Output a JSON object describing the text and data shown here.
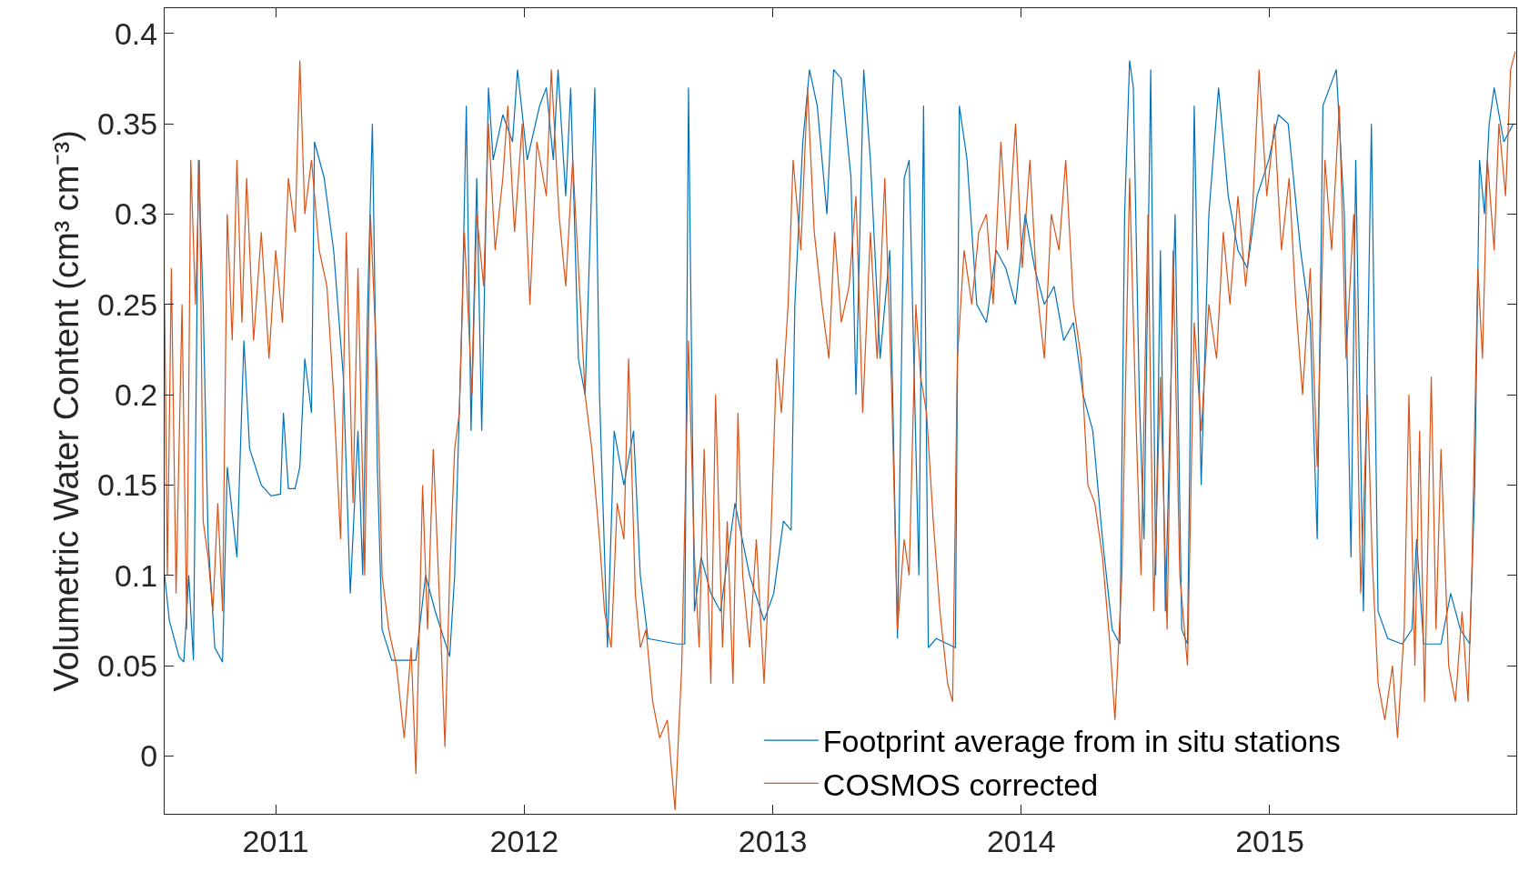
{
  "chart_data": {
    "type": "line",
    "ylabel": "Volumetric Water Content (cm³ cm⁻³)",
    "xlim": [
      2010.553,
      2015.992
    ],
    "xticks": [
      2011,
      2012,
      2013,
      2014,
      2015
    ],
    "ylim": [
      -0.032,
      0.414
    ],
    "yticks": [
      0,
      0.05,
      0.1,
      0.15,
      0.2,
      0.25,
      0.3,
      0.35,
      0.4
    ],
    "legend": "bottom right",
    "line_style": "solid",
    "marker": "none",
    "series": [
      {
        "name": "Footprint average from in situ stations",
        "color": "#0072bd",
        "x": [
          2010.553,
          2010.572,
          2010.611,
          2010.63,
          2010.65,
          2010.669,
          2010.689,
          2010.708,
          2010.728,
          2010.755,
          2010.786,
          2010.805,
          2010.844,
          2010.872,
          2010.895,
          2010.942,
          2010.981,
          2011.019,
          2011.031,
          2011.051,
          2011.078,
          2011.097,
          2011.117,
          2011.144,
          2011.156,
          2011.195,
          2011.233,
          2011.272,
          2011.3,
          2011.331,
          2011.35,
          2011.37,
          2011.389,
          2011.409,
          2011.428,
          2011.467,
          2011.564,
          2011.603,
          2011.642,
          2011.7,
          2011.72,
          2011.751,
          2011.767,
          2011.786,
          2011.809,
          2011.829,
          2011.856,
          2011.875,
          2011.914,
          2011.953,
          2011.973,
          2012.012,
          2012.062,
          2012.089,
          2012.117,
          2012.136,
          2012.167,
          2012.187,
          2012.218,
          2012.245,
          2012.284,
          2012.303,
          2012.335,
          2012.362,
          2012.401,
          2012.44,
          2012.467,
          2012.498,
          2012.615,
          2012.646,
          2012.661,
          2012.685,
          2012.712,
          2012.751,
          2012.79,
          2012.848,
          2012.907,
          2012.965,
          2013.004,
          2013.043,
          2013.074,
          2013.089,
          2013.121,
          2013.148,
          2013.179,
          2013.218,
          2013.245,
          2013.276,
          2013.315,
          2013.335,
          2013.366,
          2013.393,
          2013.432,
          2013.471,
          2013.502,
          2013.529,
          2013.549,
          2013.588,
          2013.607,
          2013.626,
          2013.658,
          2013.704,
          2013.735,
          2013.751,
          2013.782,
          2013.821,
          2013.86,
          2013.899,
          2013.938,
          2013.977,
          2014.016,
          2014.054,
          2014.093,
          2014.132,
          2014.171,
          2014.21,
          2014.249,
          2014.288,
          2014.327,
          2014.366,
          2014.397,
          2014.416,
          2014.436,
          2014.451,
          2014.475,
          2014.494,
          2014.521,
          2014.541,
          2014.56,
          2014.58,
          2014.619,
          2014.646,
          2014.669,
          2014.696,
          2014.724,
          2014.755,
          2014.794,
          2014.833,
          2014.872,
          2014.91,
          2014.949,
          2014.996,
          2015.035,
          2015.074,
          2015.124,
          2015.163,
          2015.191,
          2015.214,
          2015.241,
          2015.268,
          2015.3,
          2015.327,
          2015.346,
          2015.377,
          2015.409,
          2015.436,
          2015.475,
          2015.533,
          2015.572,
          2015.591,
          2015.619,
          2015.689,
          2015.728,
          2015.767,
          2015.805,
          2015.825,
          2015.844,
          2015.864,
          2015.883,
          2015.903,
          2015.942,
          2015.98
        ],
        "values": [
          0.1,
          0.075,
          0.055,
          0.052,
          0.1,
          0.053,
          0.33,
          0.25,
          0.12,
          0.06,
          0.052,
          0.16,
          0.11,
          0.23,
          0.17,
          0.15,
          0.144,
          0.145,
          0.19,
          0.148,
          0.148,
          0.16,
          0.22,
          0.19,
          0.34,
          0.32,
          0.28,
          0.21,
          0.09,
          0.18,
          0.1,
          0.25,
          0.35,
          0.16,
          0.07,
          0.053,
          0.053,
          0.1,
          0.08,
          0.055,
          0.1,
          0.25,
          0.36,
          0.18,
          0.32,
          0.18,
          0.37,
          0.33,
          0.355,
          0.34,
          0.38,
          0.33,
          0.36,
          0.37,
          0.33,
          0.38,
          0.31,
          0.37,
          0.22,
          0.2,
          0.37,
          0.2,
          0.06,
          0.18,
          0.15,
          0.18,
          0.1,
          0.065,
          0.062,
          0.062,
          0.37,
          0.08,
          0.11,
          0.09,
          0.08,
          0.14,
          0.1,
          0.075,
          0.09,
          0.13,
          0.125,
          0.25,
          0.34,
          0.38,
          0.36,
          0.3,
          0.38,
          0.375,
          0.32,
          0.2,
          0.38,
          0.33,
          0.22,
          0.28,
          0.065,
          0.32,
          0.33,
          0.1,
          0.36,
          0.06,
          0.065,
          0.062,
          0.06,
          0.36,
          0.33,
          0.25,
          0.24,
          0.28,
          0.27,
          0.25,
          0.3,
          0.27,
          0.25,
          0.26,
          0.23,
          0.24,
          0.2,
          0.18,
          0.12,
          0.07,
          0.062,
          0.3,
          0.385,
          0.37,
          0.2,
          0.12,
          0.38,
          0.1,
          0.28,
          0.08,
          0.3,
          0.07,
          0.062,
          0.36,
          0.15,
          0.3,
          0.37,
          0.31,
          0.28,
          0.27,
          0.31,
          0.33,
          0.355,
          0.35,
          0.28,
          0.24,
          0.12,
          0.36,
          0.37,
          0.38,
          0.3,
          0.11,
          0.33,
          0.08,
          0.35,
          0.08,
          0.065,
          0.062,
          0.07,
          0.12,
          0.062,
          0.062,
          0.09,
          0.07,
          0.062,
          0.15,
          0.33,
          0.3,
          0.35,
          0.37,
          0.34,
          0.35
        ]
      },
      {
        "name": "COSMOS corrected",
        "color": "#d95319",
        "x": [
          2010.553,
          2010.564,
          2010.58,
          2010.599,
          2010.623,
          2010.642,
          2010.658,
          2010.677,
          2010.693,
          2010.708,
          2010.728,
          2010.747,
          2010.767,
          2010.786,
          2010.805,
          2010.825,
          2010.844,
          2010.864,
          2010.883,
          2010.911,
          2010.942,
          2010.973,
          2011.0,
          2011.027,
          2011.051,
          2011.078,
          2011.097,
          2011.117,
          2011.144,
          2011.175,
          2011.206,
          2011.233,
          2011.261,
          2011.284,
          2011.311,
          2011.331,
          2011.358,
          2011.381,
          2011.409,
          2011.428,
          2011.455,
          2011.486,
          2011.517,
          2011.545,
          2011.564,
          2011.591,
          2011.611,
          2011.634,
          2011.661,
          2011.681,
          2011.7,
          2011.72,
          2011.739,
          2011.759,
          2011.79,
          2011.809,
          2011.837,
          2011.856,
          2011.883,
          2011.914,
          2011.934,
          2011.961,
          2011.992,
          2012.023,
          2012.051,
          2012.089,
          2012.109,
          2012.14,
          2012.167,
          2012.195,
          2012.226,
          2012.245,
          2012.272,
          2012.303,
          2012.323,
          2012.35,
          2012.374,
          2012.401,
          2012.42,
          2012.447,
          2012.467,
          2012.49,
          2012.517,
          2012.545,
          2012.576,
          2012.607,
          2012.634,
          2012.661,
          2012.685,
          2012.704,
          2012.724,
          2012.751,
          2012.77,
          2012.798,
          2012.817,
          2012.84,
          2012.86,
          2012.879,
          2012.907,
          2012.934,
          2012.965,
          2012.992,
          2013.016,
          2013.035,
          2013.062,
          2013.082,
          2013.113,
          2013.14,
          2013.167,
          2013.198,
          2013.226,
          2013.249,
          2013.276,
          2013.307,
          2013.335,
          2013.362,
          2013.393,
          2013.42,
          2013.451,
          2013.479,
          2013.502,
          2013.529,
          2013.549,
          2013.576,
          2013.595,
          2013.619,
          2013.646,
          2013.673,
          2013.704,
          2013.724,
          2013.743,
          2013.77,
          2013.801,
          2013.829,
          2013.86,
          2013.887,
          2013.918,
          2013.945,
          2013.977,
          2014.004,
          2014.035,
          2014.062,
          2014.093,
          2014.121,
          2014.152,
          2014.179,
          2014.21,
          2014.241,
          2014.268,
          2014.296,
          2014.327,
          2014.358,
          2014.377,
          2014.405,
          2014.436,
          2014.463,
          2014.482,
          2014.51,
          2014.533,
          2014.56,
          2014.587,
          2014.611,
          2014.638,
          2014.669,
          2014.696,
          2014.724,
          2014.755,
          2014.786,
          2014.813,
          2014.84,
          2014.872,
          2014.903,
          2014.93,
          2014.957,
          2014.988,
          2015.019,
          2015.047,
          2015.078,
          2015.105,
          2015.132,
          2015.163,
          2015.191,
          2015.222,
          2015.249,
          2015.28,
          2015.307,
          2015.338,
          2015.366,
          2015.393,
          2015.412,
          2015.436,
          2015.463,
          2015.494,
          2015.514,
          2015.541,
          2015.56,
          2015.584,
          2015.603,
          2015.623,
          2015.65,
          2015.669,
          2015.689,
          2015.72,
          2015.747,
          2015.774,
          2015.798,
          2015.813,
          2015.837,
          2015.856,
          2015.876,
          2015.903,
          2015.922,
          2015.949,
          2015.969,
          2015.988
        ],
        "values": [
          0.25,
          0.1,
          0.27,
          0.09,
          0.25,
          0.07,
          0.33,
          0.25,
          0.33,
          0.13,
          0.11,
          0.08,
          0.14,
          0.08,
          0.3,
          0.23,
          0.33,
          0.24,
          0.32,
          0.23,
          0.29,
          0.22,
          0.28,
          0.24,
          0.32,
          0.29,
          0.385,
          0.3,
          0.33,
          0.28,
          0.26,
          0.2,
          0.12,
          0.29,
          0.14,
          0.27,
          0.1,
          0.3,
          0.21,
          0.1,
          0.07,
          0.05,
          0.01,
          0.06,
          -0.01,
          0.15,
          0.07,
          0.17,
          0.08,
          0.005,
          0.1,
          0.17,
          0.19,
          0.29,
          0.2,
          0.3,
          0.26,
          0.35,
          0.28,
          0.32,
          0.36,
          0.29,
          0.35,
          0.25,
          0.34,
          0.31,
          0.38,
          0.3,
          0.26,
          0.33,
          0.25,
          0.2,
          0.17,
          0.12,
          0.08,
          0.06,
          0.14,
          0.12,
          0.22,
          0.09,
          0.06,
          0.07,
          0.03,
          0.01,
          0.02,
          -0.03,
          0.05,
          0.23,
          0.11,
          0.06,
          0.17,
          0.04,
          0.2,
          0.06,
          0.13,
          0.04,
          0.19,
          0.1,
          0.06,
          0.12,
          0.04,
          0.12,
          0.22,
          0.19,
          0.25,
          0.33,
          0.28,
          0.37,
          0.29,
          0.25,
          0.22,
          0.29,
          0.24,
          0.26,
          0.31,
          0.19,
          0.29,
          0.22,
          0.32,
          0.2,
          0.07,
          0.12,
          0.1,
          0.25,
          0.21,
          0.19,
          0.13,
          0.08,
          0.04,
          0.03,
          0.22,
          0.28,
          0.25,
          0.29,
          0.3,
          0.25,
          0.34,
          0.28,
          0.35,
          0.27,
          0.33,
          0.26,
          0.22,
          0.3,
          0.28,
          0.33,
          0.25,
          0.22,
          0.15,
          0.14,
          0.11,
          0.06,
          0.02,
          0.1,
          0.32,
          0.18,
          0.1,
          0.3,
          0.08,
          0.21,
          0.07,
          0.28,
          0.1,
          0.05,
          0.24,
          0.18,
          0.25,
          0.22,
          0.29,
          0.25,
          0.31,
          0.26,
          0.3,
          0.38,
          0.31,
          0.35,
          0.28,
          0.32,
          0.25,
          0.2,
          0.27,
          0.16,
          0.33,
          0.28,
          0.36,
          0.22,
          0.3,
          0.09,
          0.2,
          0.11,
          0.04,
          0.02,
          0.05,
          0.01,
          0.07,
          0.2,
          0.05,
          0.18,
          0.03,
          0.21,
          0.07,
          0.17,
          0.05,
          0.03,
          0.08,
          0.03,
          0.1,
          0.27,
          0.22,
          0.33,
          0.28,
          0.35,
          0.31,
          0.38,
          0.39
        ]
      }
    ]
  }
}
